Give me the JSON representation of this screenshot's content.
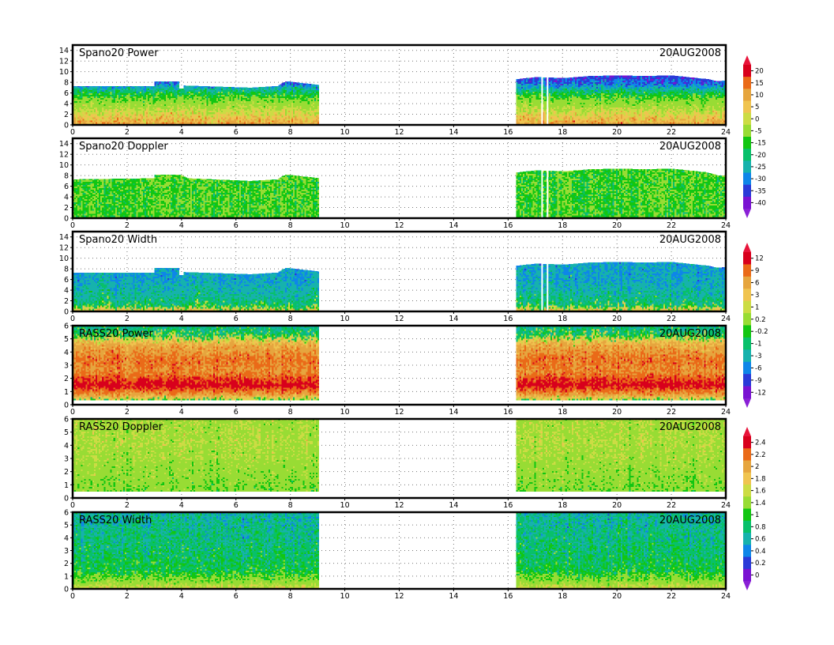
{
  "chart_data": [
    {
      "type": "heatmap",
      "title": "Spano20 Power",
      "date": "20AUG2008",
      "xlim": [
        0,
        24
      ],
      "ylim": [
        0,
        15
      ],
      "x_ticks": [
        0,
        2,
        4,
        6,
        8,
        10,
        12,
        14,
        16,
        18,
        20,
        22,
        24
      ],
      "y_ticks": [
        0,
        2,
        4,
        6,
        8,
        10,
        12,
        14
      ],
      "grid": true,
      "data_segments": [
        [
          0,
          9.05
        ],
        [
          16.3,
          24
        ]
      ],
      "gap_lines_x": [
        17.25,
        17.45
      ],
      "top_profile": [
        [
          0,
          7.3
        ],
        [
          3,
          7.3
        ],
        [
          3.0,
          8.2
        ],
        [
          3.9,
          8.2
        ],
        [
          3.9,
          6.8
        ],
        [
          4.05,
          6.8
        ],
        [
          4.05,
          7.4
        ],
        [
          6.5,
          7.0
        ],
        [
          7.5,
          7.3
        ],
        [
          7.8,
          8.2
        ],
        [
          9.05,
          7.5
        ],
        [
          16.3,
          8.6
        ],
        [
          17.0,
          9.0
        ],
        [
          18.0,
          8.8
        ],
        [
          19.0,
          9.2
        ],
        [
          20.0,
          9.3
        ],
        [
          21.0,
          9.2
        ],
        [
          22.0,
          9.3
        ],
        [
          23.3,
          8.6
        ],
        [
          23.7,
          8.2
        ],
        [
          24.0,
          8.4
        ]
      ],
      "value_profile": [
        [
          0,
          8
        ],
        [
          1.5,
          2
        ],
        [
          3,
          -5
        ],
        [
          4.5,
          -12
        ],
        [
          6,
          -20
        ],
        [
          7,
          -28
        ],
        [
          8,
          -35
        ],
        [
          9.5,
          -38
        ],
        [
          15,
          -40
        ]
      ]
    },
    {
      "type": "heatmap",
      "title": "Spano20  Doppler",
      "date": "20AUG2008",
      "xlim": [
        0,
        24
      ],
      "ylim": [
        0,
        15
      ],
      "x_ticks": [
        0,
        2,
        4,
        6,
        8,
        10,
        12,
        14,
        16,
        18,
        20,
        22,
        24
      ],
      "y_ticks": [
        0,
        2,
        4,
        6,
        8,
        10,
        12,
        14
      ],
      "grid": true,
      "data_segments": [
        [
          0,
          9.05
        ],
        [
          16.3,
          24
        ]
      ],
      "gap_lines_x": [
        17.25,
        17.45
      ],
      "top_profile": [
        [
          0,
          7.3
        ],
        [
          3,
          7.5
        ],
        [
          3.0,
          8.2
        ],
        [
          3.9,
          8.2
        ],
        [
          4.2,
          7.5
        ],
        [
          6.5,
          7.0
        ],
        [
          7.5,
          7.3
        ],
        [
          7.8,
          8.2
        ],
        [
          9.05,
          7.5
        ],
        [
          16.3,
          8.6
        ],
        [
          17.0,
          9.0
        ],
        [
          18.0,
          8.8
        ],
        [
          19.0,
          9.2
        ],
        [
          20.0,
          9.3
        ],
        [
          21.0,
          9.2
        ],
        [
          22.0,
          9.3
        ],
        [
          23.3,
          8.6
        ],
        [
          23.7,
          8.0
        ],
        [
          24.0,
          8.0
        ]
      ],
      "value_profile": [
        [
          0,
          -16
        ],
        [
          14,
          -16
        ]
      ]
    },
    {
      "type": "heatmap",
      "title": "Spano20  Width",
      "date": "20AUG2008",
      "xlim": [
        0,
        24
      ],
      "ylim": [
        0,
        15
      ],
      "x_ticks": [
        0,
        2,
        4,
        6,
        8,
        10,
        12,
        14,
        16,
        18,
        20,
        22,
        24
      ],
      "y_ticks": [
        0,
        2,
        4,
        6,
        8,
        10,
        12,
        14
      ],
      "grid": true,
      "data_segments": [
        [
          0,
          9.05
        ],
        [
          16.3,
          24
        ]
      ],
      "gap_lines_x": [
        17.25,
        17.45
      ],
      "top_profile": [
        [
          0,
          7.3
        ],
        [
          3,
          7.3
        ],
        [
          3.0,
          8.2
        ],
        [
          3.9,
          8.2
        ],
        [
          3.9,
          6.8
        ],
        [
          4.05,
          6.8
        ],
        [
          4.05,
          7.4
        ],
        [
          6.5,
          7.0
        ],
        [
          7.5,
          7.3
        ],
        [
          7.8,
          8.2
        ],
        [
          9.05,
          7.5
        ],
        [
          16.3,
          8.6
        ],
        [
          17.0,
          9.0
        ],
        [
          18.0,
          8.8
        ],
        [
          19.0,
          9.2
        ],
        [
          20.0,
          9.3
        ],
        [
          21.0,
          9.2
        ],
        [
          22.0,
          9.3
        ],
        [
          23.3,
          8.6
        ],
        [
          23.7,
          8.2
        ],
        [
          24.0,
          8.4
        ]
      ],
      "value_profile": [
        [
          0,
          2.5
        ],
        [
          0.5,
          0.8
        ],
        [
          1.2,
          -1.5
        ],
        [
          3,
          -3.5
        ],
        [
          6,
          -5.5
        ],
        [
          15,
          -6
        ]
      ]
    },
    {
      "type": "heatmap",
      "title": "RASS20  Power",
      "date": "20AUG2008",
      "xlim": [
        0,
        24
      ],
      "ylim": [
        0,
        6
      ],
      "x_ticks": [
        0,
        2,
        4,
        6,
        8,
        10,
        12,
        14,
        16,
        18,
        20,
        22,
        24
      ],
      "y_ticks": [
        0,
        1,
        2,
        3,
        4,
        5,
        6
      ],
      "grid": true,
      "data_segments": [
        [
          0,
          9.05
        ],
        [
          16.3,
          24
        ]
      ],
      "bottom": 0.35,
      "top_profile": [
        [
          0,
          6
        ],
        [
          24,
          6
        ]
      ],
      "value_profile": [
        [
          0.3,
          -1
        ],
        [
          0.8,
          5
        ],
        [
          1.5,
          11
        ],
        [
          2.5,
          6
        ],
        [
          3.5,
          7
        ],
        [
          4.5,
          4
        ],
        [
          5.3,
          -1
        ],
        [
          6,
          -3
        ]
      ]
    },
    {
      "type": "heatmap",
      "title": "RASS20  Doppler",
      "date": "20AUG2008",
      "xlim": [
        0,
        24
      ],
      "ylim": [
        0,
        6
      ],
      "x_ticks": [
        0,
        2,
        4,
        6,
        8,
        10,
        12,
        14,
        16,
        18,
        20,
        22,
        24
      ],
      "y_ticks": [
        0,
        1,
        2,
        3,
        4,
        5,
        6
      ],
      "grid": true,
      "data_segments": [
        [
          0,
          9.05
        ],
        [
          16.3,
          24
        ]
      ],
      "bottom": 0.5,
      "top_profile": [
        [
          0,
          6
        ],
        [
          24,
          6
        ]
      ],
      "value_profile": [
        [
          0.5,
          1.1
        ],
        [
          2,
          1.2
        ],
        [
          4,
          1.35
        ],
        [
          6,
          1.3
        ]
      ]
    },
    {
      "type": "heatmap",
      "title": "RASS20  Width",
      "date": "20AUG2008",
      "xlim": [
        0,
        24
      ],
      "ylim": [
        0,
        6
      ],
      "x_ticks": [
        0,
        2,
        4,
        6,
        8,
        10,
        12,
        14,
        16,
        18,
        20,
        22,
        24
      ],
      "y_ticks": [
        0,
        1,
        2,
        3,
        4,
        5,
        6
      ],
      "grid": true,
      "data_segments": [
        [
          0,
          9.05
        ],
        [
          16.3,
          24
        ]
      ],
      "bottom": 0.0,
      "top_profile": [
        [
          0,
          6
        ],
        [
          24,
          6
        ]
      ],
      "value_profile": [
        [
          0,
          1.6
        ],
        [
          0.6,
          1.15
        ],
        [
          1.5,
          0.8
        ],
        [
          3,
          0.7
        ],
        [
          5,
          0.6
        ],
        [
          6,
          0.55
        ]
      ]
    }
  ],
  "colorbars": [
    {
      "labels": [
        "20",
        "15",
        "10",
        "5",
        "0",
        "-5",
        "-15",
        "-20",
        "-25",
        "-30",
        "-35",
        "-40"
      ],
      "levels": [
        20,
        15,
        10,
        5,
        0,
        -5,
        -15,
        -20,
        -25,
        -30,
        -35,
        -40
      ],
      "colors": [
        "#d8001c",
        "#ea6a18",
        "#e6a53e",
        "#f0c450",
        "#ccdc44",
        "#98dc34",
        "#12c612",
        "#08c06a",
        "#16b2ad",
        "#0e86e8",
        "#2a3ad8",
        "#7a12d2"
      ],
      "triangle_top": "#e8143a",
      "triangle_bottom": "#8a20d6"
    },
    {
      "labels": [
        "12",
        "9",
        "6",
        "3",
        "1",
        "0.2",
        "-0.2",
        "-1",
        "-3",
        "-6",
        "-9",
        "-12"
      ],
      "levels": [
        12,
        9,
        6,
        3,
        1,
        0.2,
        -0.2,
        -1,
        -3,
        -6,
        -9,
        -12
      ],
      "colors": [
        "#d8001c",
        "#ea6a18",
        "#e6a53e",
        "#f0c450",
        "#ccdc44",
        "#98dc34",
        "#12c612",
        "#08c06a",
        "#16b2ad",
        "#0e86e8",
        "#2a3ad8",
        "#7a12d2"
      ],
      "triangle_top": "#e8143a",
      "triangle_bottom": "#8a20d6"
    },
    {
      "labels": [
        "2.4",
        "2.2",
        "2",
        "1.8",
        "1.6",
        "1.4",
        "1",
        "0.8",
        "0.6",
        "0.4",
        "0.2",
        "0"
      ],
      "levels": [
        2.4,
        2.2,
        2,
        1.8,
        1.6,
        1.4,
        1,
        0.8,
        0.6,
        0.4,
        0.2,
        0
      ],
      "colors": [
        "#d8001c",
        "#ea6a18",
        "#e6a53e",
        "#f0c450",
        "#ccdc44",
        "#98dc34",
        "#12c612",
        "#08c06a",
        "#16b2ad",
        "#0e86e8",
        "#2a3ad8",
        "#7a12d2"
      ],
      "triangle_top": "#e8143a",
      "triangle_bottom": "#8a20d6"
    }
  ]
}
